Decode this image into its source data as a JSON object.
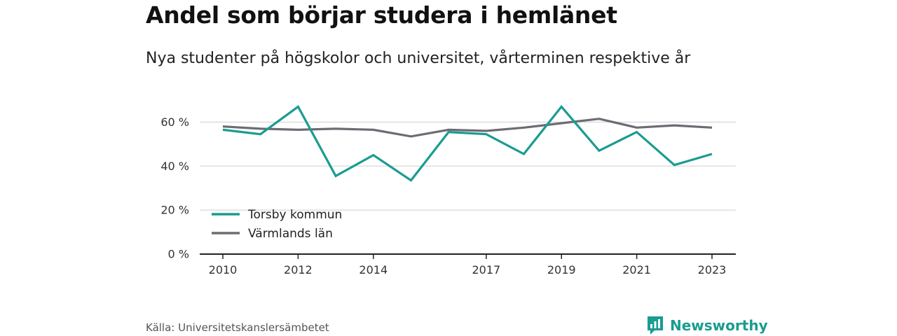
{
  "title": "Andel som börjar studera i hemlänet",
  "subtitle": "Nya studenter på högskolor och universitet, vårterminen respektive år",
  "source": "Källa: Universitetskanslersämbetet",
  "brand": "Newsworthy",
  "colors": {
    "torsby": "#1a9c91",
    "varmland": "#6e6b73",
    "grid": "#d9d9d9",
    "axis": "#222222",
    "brand": "#1a9c91"
  },
  "chart_data": {
    "type": "line",
    "x": [
      2010,
      2011,
      2012,
      2013,
      2014,
      2015,
      2016,
      2017,
      2018,
      2019,
      2020,
      2021,
      2022,
      2023
    ],
    "x_tick_labels": [
      "2010",
      "2012",
      "2014",
      "2017",
      "2019",
      "2021",
      "2023"
    ],
    "y_tick_labels": [
      "0 %",
      "20 %",
      "40 %",
      "60 %"
    ],
    "ylim": [
      0,
      70
    ],
    "grid": true,
    "legend_position": "bottom-left",
    "series": [
      {
        "name": "Torsby kommun",
        "values": [
          56.5,
          54.5,
          67,
          35.5,
          45,
          33.5,
          55.5,
          54.5,
          45.5,
          67,
          47,
          55.5,
          40.5,
          45.5
        ]
      },
      {
        "name": "Värmlands län",
        "values": [
          58,
          57,
          56.5,
          57,
          56.5,
          53.5,
          56.5,
          56,
          57.5,
          59.5,
          61.5,
          57.5,
          58.5,
          57.5
        ]
      }
    ]
  }
}
